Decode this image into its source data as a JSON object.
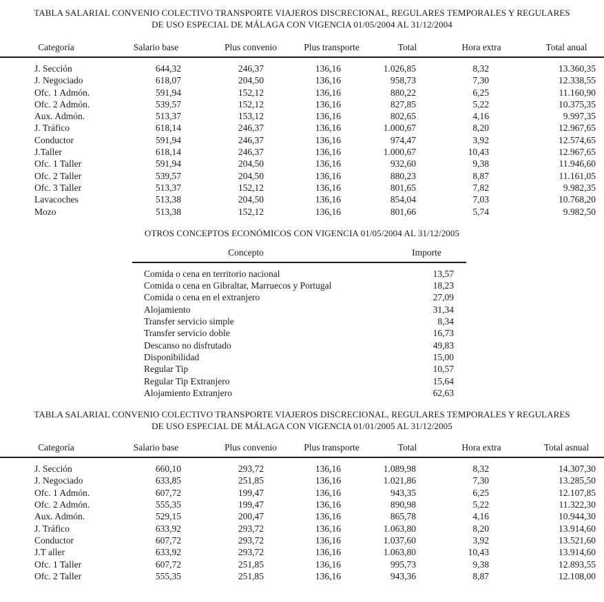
{
  "page": {
    "background": "#ffffff",
    "text_color": "#1b1b1b",
    "rule_color": "#1b1b1b"
  },
  "table1": {
    "title_line1": "TABLA SALARIAL CONVENIO COLECTIVO TRANSPORTE VIAJEROS DISCRECIONAL, REGULARES TEMPORALES Y REGULARES",
    "title_line2": "DE USO ESPECIAL DE MÁLAGA CON VIGENCIA 01/05/2004 AL 31/12/2004",
    "headers": [
      "Categoría",
      "Salario base",
      "Plus convenio",
      "Plus transporte",
      "Total",
      "Hora extra",
      "Total anual"
    ],
    "rows": [
      [
        "J. Sección",
        "644,32",
        "246,37",
        "136,16",
        "1.026,85",
        "8,32",
        "13.360,35"
      ],
      [
        "J. Negociado",
        "618,07",
        "204,50",
        "136,16",
        "958,73",
        "7,30",
        "12.338,55"
      ],
      [
        "Ofc. 1 Admón.",
        "591,94",
        "152,12",
        "136,16",
        "880,22",
        "6,25",
        "11.160,90"
      ],
      [
        "Ofc. 2 Admón.",
        "539,57",
        "152,12",
        "136,16",
        "827,85",
        "5,22",
        "10.375,35"
      ],
      [
        "Aux. Admón.",
        "513,37",
        "153,12",
        "136,16",
        "802,65",
        "4,16",
        "9.997,35"
      ],
      [
        "J. Tráfico",
        "618,14",
        "246,37",
        "136,16",
        "1.000,67",
        "8,20",
        "12.967,65"
      ],
      [
        "Conductor",
        "591,94",
        "246,37",
        "136,16",
        "974,47",
        "3,92",
        "12.574,65"
      ],
      [
        "J.Taller",
        "618,14",
        "246,37",
        "136,16",
        "1.000,67",
        "10,43",
        "12.967,65"
      ],
      [
        "Ofc. 1 Taller",
        "591,94",
        "204,50",
        "136,16",
        "932,60",
        "9,38",
        "11.946,60"
      ],
      [
        "Ofc. 2 Taller",
        "539,57",
        "204,50",
        "136,16",
        "880,23",
        "8,87",
        "11.161,05"
      ],
      [
        "Ofc. 3 Taller",
        "513,37",
        "152,12",
        "136,16",
        "801,65",
        "7,82",
        "9.982,35"
      ],
      [
        "Lavacoches",
        "513,38",
        "204,50",
        "136,16",
        "854,04",
        "7,03",
        "10.768,20"
      ],
      [
        "Mozo",
        "513,38",
        "152,12",
        "136,16",
        "801,66",
        "5,74",
        "9.982,50"
      ]
    ]
  },
  "otros_conceptos": {
    "title": "OTROS CONCEPTOS ECONÓMICOS CON VIGENCIA 01/05/2004 AL 31/12/2005",
    "headers": [
      "Concepto",
      "Importe"
    ],
    "rows": [
      [
        "Comida o cena en territorio nacional",
        "13,57"
      ],
      [
        "Comida o cena en Gibraltar, Marruecos y Portugal",
        "18,23"
      ],
      [
        "Comida o cena en el extranjero",
        "27,09"
      ],
      [
        "Alojamiento",
        "31,34"
      ],
      [
        "Transfer servicio simple",
        "8,34"
      ],
      [
        "Transfer servicio doble",
        "16,73"
      ],
      [
        "Descanso no disfrutado",
        "49,83"
      ],
      [
        "Disponibilidad",
        "15,00"
      ],
      [
        "Regular Tip",
        "10,57"
      ],
      [
        "Regular Tip Extranjero",
        "15,64"
      ],
      [
        "Alojamiento Extranjero",
        "62,63"
      ]
    ]
  },
  "table2": {
    "title_line1": "TABLA SALARIAL CONVENIO COLECTIVO TRANSPORTE VIAJEROS DISCRECIONAL, REGULARES TEMPORALES Y REGULARES",
    "title_line2": "DE USO ESPECIAL DE MÁLAGA CON VIGENCIA 01/01/2005 AL 31/12/2005",
    "headers": [
      "Categoría",
      "Salario base",
      "Plus convenio",
      "Plus transporte",
      "Total",
      "Hora extra",
      "Total asnual"
    ],
    "rows": [
      [
        "J. Sección",
        "660,10",
        "293,72",
        "136,16",
        "1.089,98",
        "8,32",
        "14.307,30"
      ],
      [
        "J. Negociado",
        "633,85",
        "251,85",
        "136,16",
        "1.021,86",
        "7,30",
        "13.285,50"
      ],
      [
        "Ofc. 1 Admón.",
        "607,72",
        "199,47",
        "136,16",
        "943,35",
        "6,25",
        "12.107,85"
      ],
      [
        "Ofc. 2 Admón.",
        "555,35",
        "199,47",
        "136,16",
        "890,98",
        "5,22",
        "11.322,30"
      ],
      [
        "Aux. Admón.",
        "529,15",
        "200,47",
        "136,16",
        "865,78",
        "4,16",
        "10.944,30"
      ],
      [
        "J. Tráfico",
        "633,92",
        "293,72",
        "136,16",
        "1.063,80",
        "8,20",
        "13.914,60"
      ],
      [
        "Conductor",
        "607,72",
        "293,72",
        "136,16",
        "1.037,60",
        "3,92",
        "13.521,60"
      ],
      [
        "J.T aller",
        "633,92",
        "293,72",
        "136,16",
        "1.063,80",
        "10,43",
        "13.914,60"
      ],
      [
        "Ofc. 1 Taller",
        "607,72",
        "251,85",
        "136,16",
        "995,73",
        "9,38",
        "12.893,55"
      ],
      [
        "Ofc. 2 Taller",
        "555,35",
        "251,85",
        "136,16",
        "943,36",
        "8,87",
        "12.108,00"
      ]
    ]
  }
}
